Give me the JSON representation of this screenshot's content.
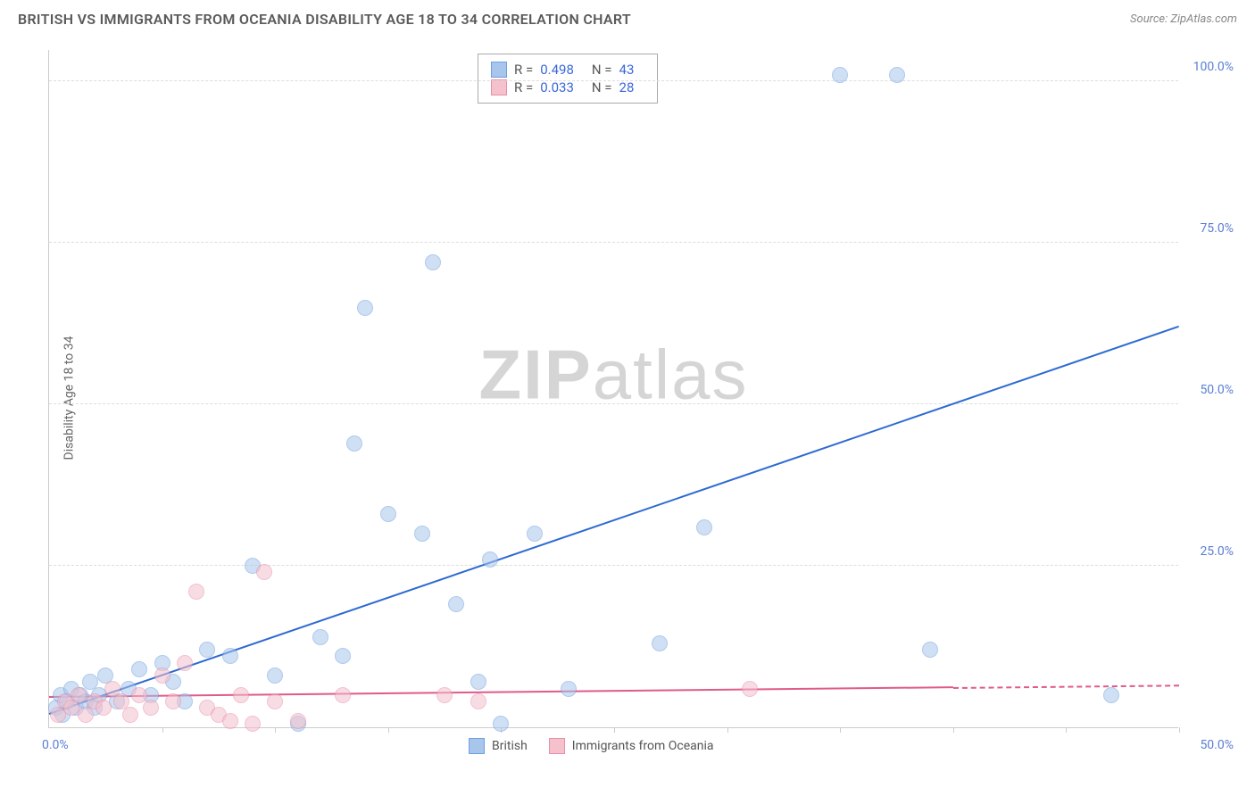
{
  "title": "BRITISH VS IMMIGRANTS FROM OCEANIA DISABILITY AGE 18 TO 34 CORRELATION CHART",
  "source": "Source: ZipAtlas.com",
  "y_axis_label": "Disability Age 18 to 34",
  "watermark_bold": "ZIP",
  "watermark_light": "atlas",
  "chart": {
    "type": "scatter",
    "xlim": [
      0,
      50
    ],
    "ylim": [
      0,
      105
    ],
    "x_ticks": [
      0,
      5,
      10,
      15,
      20,
      25,
      30,
      35,
      40,
      45,
      50
    ],
    "x_tick_labels": {
      "0": "0.0%",
      "50": "50.0%"
    },
    "y_grid": [
      25,
      50,
      75,
      100
    ],
    "y_tick_labels": {
      "25": "25.0%",
      "50": "50.0%",
      "75": "75.0%",
      "100": "100.0%"
    },
    "grid_color": "#dddddd",
    "axis_color": "#cccccc",
    "tick_label_color": "#5a7fd4",
    "background_color": "#ffffff",
    "point_radius": 9,
    "point_opacity": 0.55,
    "series": [
      {
        "name": "British",
        "color_fill": "#a8c5ec",
        "color_stroke": "#6f9fe0",
        "R": "0.498",
        "N": "43",
        "trend": {
          "x1": 0,
          "y1": 2,
          "x2": 50,
          "y2": 62,
          "color": "#2e6ad1",
          "dash_from_x": 50
        },
        "points": [
          [
            0.3,
            3
          ],
          [
            0.5,
            5
          ],
          [
            0.6,
            2
          ],
          [
            0.8,
            4
          ],
          [
            1.0,
            6
          ],
          [
            1.2,
            3
          ],
          [
            1.4,
            5
          ],
          [
            1.6,
            4
          ],
          [
            1.8,
            7
          ],
          [
            2.0,
            3
          ],
          [
            2.2,
            5
          ],
          [
            2.5,
            8
          ],
          [
            3.0,
            4
          ],
          [
            3.5,
            6
          ],
          [
            4.0,
            9
          ],
          [
            4.5,
            5
          ],
          [
            5.0,
            10
          ],
          [
            5.5,
            7
          ],
          [
            6.0,
            4
          ],
          [
            7.0,
            12
          ],
          [
            8.0,
            11
          ],
          [
            9.0,
            25
          ],
          [
            10.0,
            8
          ],
          [
            11.0,
            0.5
          ],
          [
            12.0,
            14
          ],
          [
            13.0,
            11
          ],
          [
            13.5,
            44
          ],
          [
            14.0,
            65
          ],
          [
            15.0,
            33
          ],
          [
            16.5,
            30
          ],
          [
            17.0,
            72
          ],
          [
            18.0,
            19
          ],
          [
            19.0,
            7
          ],
          [
            19.5,
            26
          ],
          [
            20.0,
            0.5
          ],
          [
            21.5,
            30
          ],
          [
            23.0,
            6
          ],
          [
            27.0,
            13
          ],
          [
            29.0,
            31
          ],
          [
            35.0,
            101
          ],
          [
            37.5,
            101
          ],
          [
            39.0,
            12
          ],
          [
            47.0,
            5
          ]
        ]
      },
      {
        "name": "Immigrants from Oceania",
        "color_fill": "#f4c1cd",
        "color_stroke": "#e98fa8",
        "R": "0.033",
        "N": "28",
        "trend": {
          "x1": 0,
          "y1": 4.5,
          "x2": 40,
          "y2": 6,
          "color": "#e05a8a",
          "dash_from_x": 40
        },
        "points": [
          [
            0.4,
            2
          ],
          [
            0.7,
            4
          ],
          [
            1.0,
            3
          ],
          [
            1.3,
            5
          ],
          [
            1.6,
            2
          ],
          [
            2.0,
            4
          ],
          [
            2.4,
            3
          ],
          [
            2.8,
            6
          ],
          [
            3.2,
            4
          ],
          [
            3.6,
            2
          ],
          [
            4.0,
            5
          ],
          [
            4.5,
            3
          ],
          [
            5.0,
            8
          ],
          [
            5.5,
            4
          ],
          [
            6.0,
            10
          ],
          [
            6.5,
            21
          ],
          [
            7.0,
            3
          ],
          [
            7.5,
            2
          ],
          [
            8.0,
            1
          ],
          [
            8.5,
            5
          ],
          [
            9.0,
            0.5
          ],
          [
            9.5,
            24
          ],
          [
            10.0,
            4
          ],
          [
            11.0,
            1
          ],
          [
            13.0,
            5
          ],
          [
            17.5,
            5
          ],
          [
            19.0,
            4
          ],
          [
            31.0,
            6
          ]
        ]
      }
    ]
  },
  "stats_box": {
    "rows": [
      {
        "swatch_fill": "#a8c5ec",
        "swatch_stroke": "#6f9fe0",
        "r_label": "R =",
        "r_val": "0.498",
        "n_label": "N =",
        "n_val": "43"
      },
      {
        "swatch_fill": "#f4c1cd",
        "swatch_stroke": "#e98fa8",
        "r_label": "R =",
        "r_val": "0.033",
        "n_label": "N =",
        "n_val": "28"
      }
    ]
  },
  "bottom_legend": [
    {
      "swatch_fill": "#a8c5ec",
      "swatch_stroke": "#6f9fe0",
      "label": "British"
    },
    {
      "swatch_fill": "#f4c1cd",
      "swatch_stroke": "#e98fa8",
      "label": "Immigrants from Oceania"
    }
  ]
}
